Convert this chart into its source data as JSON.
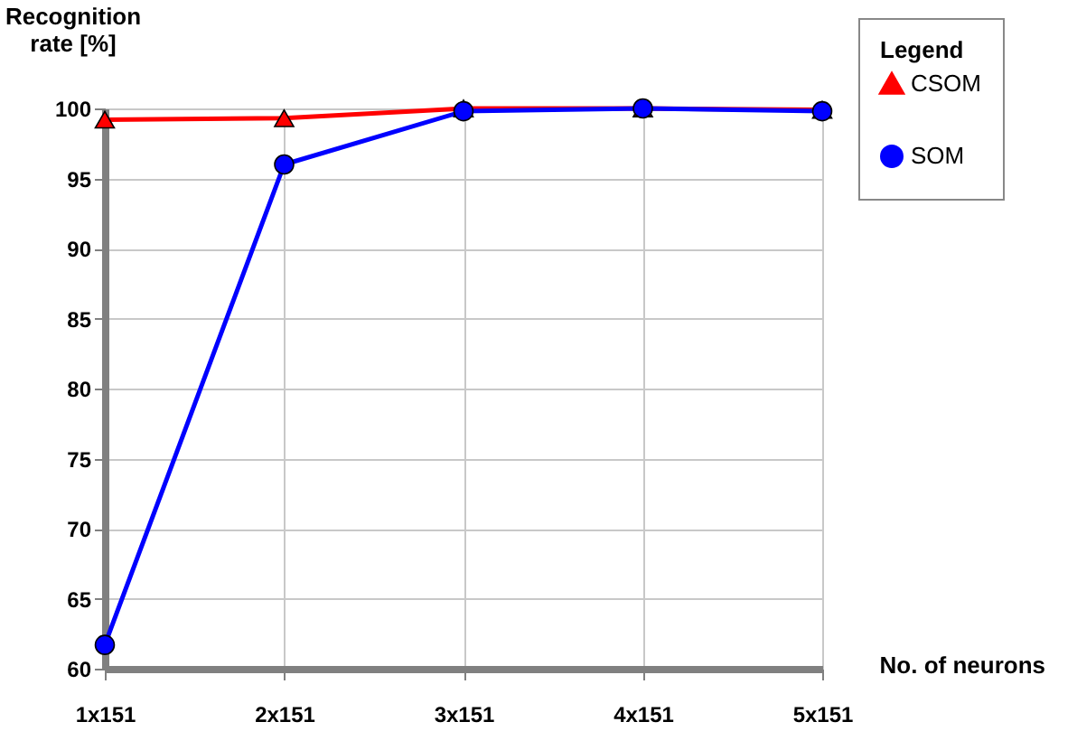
{
  "chart_data": {
    "type": "line",
    "xlabel": "No. of neurons",
    "ylabel": "Recognition rate [%]",
    "legend_title": "Legend",
    "categories": [
      "1x151",
      "2x151",
      "3x151",
      "4x151",
      "5x151"
    ],
    "series": [
      {
        "name": "CSOM",
        "color": "#ff0000",
        "marker": "triangle",
        "values": [
          99.2,
          99.3,
          100,
          100,
          99.9
        ]
      },
      {
        "name": "SOM",
        "color": "#0000ff",
        "marker": "circle",
        "values": [
          61.7,
          96,
          99.8,
          100,
          99.8
        ]
      }
    ],
    "ylim": [
      60,
      100
    ],
    "yticks": [
      60,
      65,
      70,
      75,
      80,
      85,
      90,
      95,
      100
    ],
    "grid": true,
    "legend": "top right"
  }
}
